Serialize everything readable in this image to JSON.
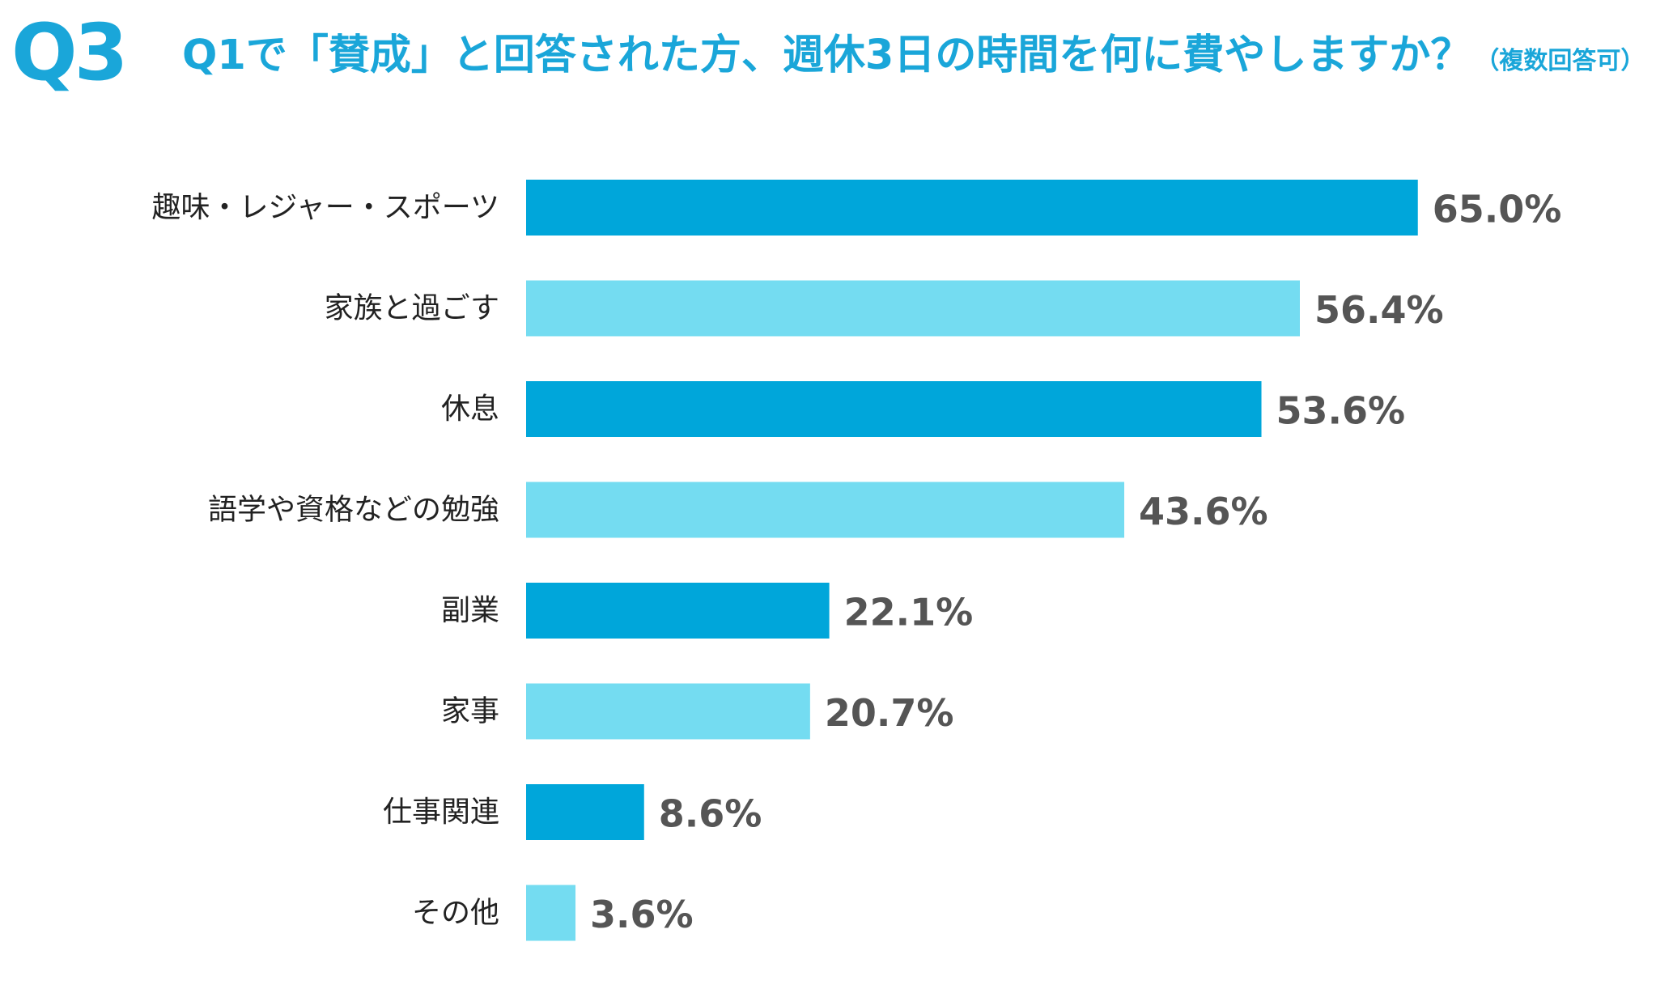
{
  "header": {
    "badge": "Q3",
    "question": "Q1で「賛成」と回答された方、週休3日の時間を何に費やしますか？",
    "note": "（複数回答可）"
  },
  "chart_data": {
    "type": "bar",
    "orientation": "horizontal",
    "categories": [
      "趣味・レジャー・スポーツ",
      "家族と過ごす",
      "休息",
      "語学や資格などの勉強",
      "副業",
      "家事",
      "仕事関連",
      "その他"
    ],
    "values": [
      65.0,
      56.4,
      53.6,
      43.6,
      22.1,
      20.7,
      8.6,
      3.6
    ],
    "value_labels": [
      "65.0%",
      "56.4%",
      "53.6%",
      "43.6%",
      "22.1%",
      "20.7%",
      "8.6%",
      "3.6%"
    ],
    "unit": "%",
    "xlim": [
      0,
      100
    ],
    "grid": false,
    "colors": {
      "odd": "#00a6da",
      "even": "#74dcf1",
      "title": "#1aa6d9",
      "value_text": "#555555"
    }
  }
}
